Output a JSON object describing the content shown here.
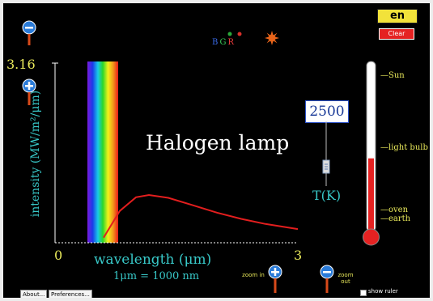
{
  "app": {
    "language_badge": "en",
    "clear_label": "Clear",
    "about_label": "About...",
    "preferences_label": "Preferences..."
  },
  "colors": {
    "background": "#000000",
    "curve": "#e31e1e",
    "axis_text": "#e8e85a",
    "cyan_text": "#38c8c8",
    "thermometer_fill": "#e52222",
    "clear_button": "#e52222"
  },
  "bgr": {
    "b": "B",
    "g": "G",
    "r": "R"
  },
  "plot": {
    "y_max_label": "3.16",
    "y_axis_label": "intensity (MW/m²/μm)",
    "x_min_label": "0",
    "x_max_label": "3",
    "x_axis_label": "wavelength (μm)",
    "conversion": "1μm = 1000 nm",
    "annotation": "Halogen lamp"
  },
  "temperature": {
    "value": "2500",
    "unit_label": "T(K)"
  },
  "thermometer": {
    "labels": [
      "Sun",
      "light bulb",
      "oven",
      "earth"
    ],
    "level_fraction": 0.43
  },
  "zoom": {
    "in_label": "zoom in",
    "out_label": "zoom out"
  },
  "ruler": {
    "label": "show ruler",
    "checked": false
  },
  "chart_data": {
    "type": "line",
    "x": [
      0.6,
      0.8,
      1.0,
      1.16,
      1.4,
      1.7,
      2.0,
      2.3,
      2.6,
      3.0
    ],
    "y": [
      0.09,
      0.56,
      0.8,
      0.84,
      0.79,
      0.66,
      0.53,
      0.42,
      0.33,
      0.24
    ],
    "xlim": [
      0,
      3
    ],
    "ylim": [
      0,
      3.16
    ]
  }
}
